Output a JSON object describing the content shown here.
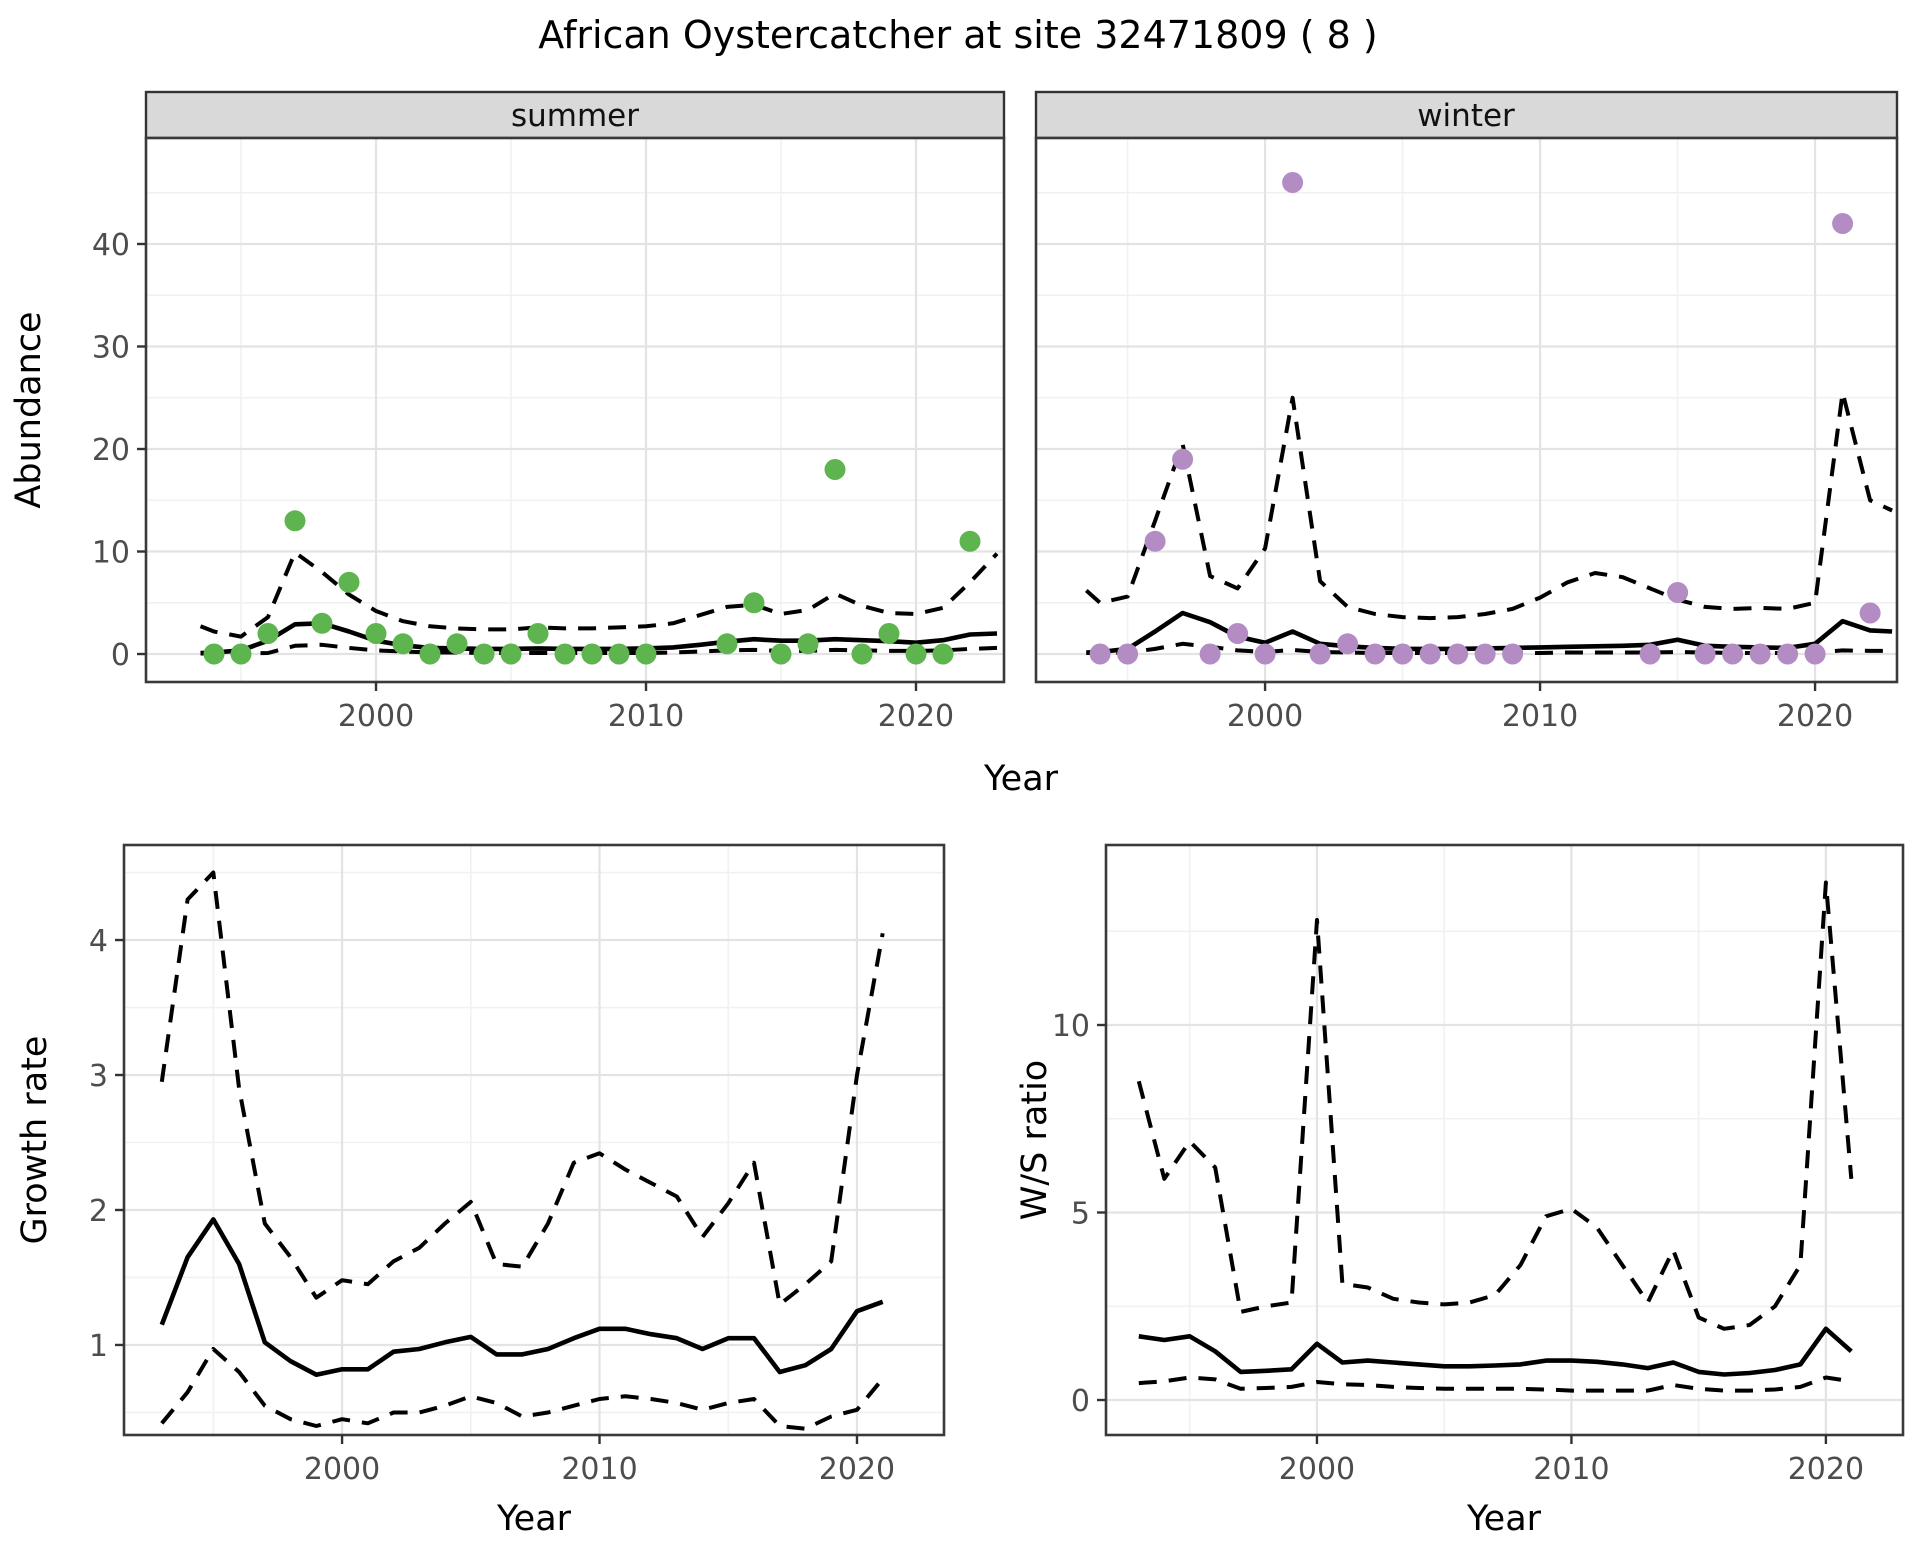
{
  "title": "African Oystercatcher at site 32471809 ( 8 )",
  "axes": {
    "abundance_label": "Abundance",
    "year_label": "Year",
    "growth_label": "Growth rate",
    "ws_label": "W/S ratio"
  },
  "colors": {
    "summer_point": "#5eb44e",
    "winter_point": "#b48cc4",
    "line": "#000000",
    "strip_bg": "#d9d9d9",
    "grid_major": "#e3e3e3",
    "grid_minor": "#f1f1f1",
    "panel_border": "#3a3a3a"
  },
  "chart_data": [
    {
      "id": "abundance-summer",
      "type": "scatter+line",
      "strip": "summer",
      "ylabel": "Abundance",
      "xlabel": "Year",
      "point_color": "#5eb44e",
      "xlim": [
        1991.48,
        2023.26
      ],
      "ylim": [
        -2.73,
        50.34
      ],
      "x_ticks": [
        2000,
        2010,
        2020
      ],
      "y_ticks": [
        0,
        10,
        20,
        30,
        40
      ],
      "x_minor": [
        1995,
        2005,
        2015
      ],
      "y_minor": [
        5,
        15,
        25,
        35,
        45
      ],
      "points": {
        "x": [
          1994,
          1995,
          1996,
          1997,
          1998,
          1999,
          2000,
          2001,
          2002,
          2003,
          2004,
          2005,
          2006,
          2007,
          2008,
          2009,
          2010,
          2013,
          2014,
          2015,
          2016,
          2017,
          2018,
          2019,
          2020,
          2021,
          2022
        ],
        "y": [
          0,
          0,
          2,
          13,
          3,
          7,
          2,
          1,
          0,
          1,
          0,
          0,
          2,
          0,
          0,
          0,
          0,
          1,
          5,
          0,
          1,
          18,
          0,
          2,
          0,
          0,
          11
        ]
      },
      "lines": {
        "x": [
          1993.5,
          1994,
          1995,
          1996,
          1997,
          1998,
          1999,
          2000,
          2001,
          2002,
          2003,
          2004,
          2005,
          2006,
          2007,
          2008,
          2009,
          2010,
          2011,
          2012,
          2013,
          2014,
          2015,
          2016,
          2017,
          2018,
          2019,
          2020,
          2021,
          2022,
          2023
        ],
        "fit": [
          0.1,
          0.15,
          0.35,
          1.3,
          2.9,
          3.0,
          2.2,
          1.3,
          0.85,
          0.6,
          0.55,
          0.5,
          0.5,
          0.55,
          0.5,
          0.5,
          0.5,
          0.55,
          0.65,
          0.9,
          1.2,
          1.45,
          1.3,
          1.3,
          1.45,
          1.35,
          1.25,
          1.1,
          1.35,
          1.9,
          2.0
        ],
        "upper": [
          2.7,
          2.2,
          1.7,
          3.6,
          9.9,
          8.0,
          5.8,
          4.2,
          3.2,
          2.7,
          2.5,
          2.4,
          2.4,
          2.6,
          2.5,
          2.5,
          2.6,
          2.7,
          3.0,
          3.8,
          4.6,
          4.8,
          3.9,
          4.3,
          5.9,
          4.7,
          4.0,
          3.9,
          4.5,
          7.0,
          9.8
        ],
        "lower": [
          0.05,
          0.05,
          0.05,
          0.1,
          0.8,
          0.9,
          0.6,
          0.35,
          0.25,
          0.15,
          0.15,
          0.1,
          0.1,
          0.1,
          0.1,
          0.1,
          0.1,
          0.1,
          0.15,
          0.25,
          0.35,
          0.4,
          0.3,
          0.3,
          0.4,
          0.35,
          0.3,
          0.3,
          0.35,
          0.5,
          0.6
        ]
      }
    },
    {
      "id": "abundance-winter",
      "type": "scatter+line",
      "strip": "winter",
      "ylabel": "Abundance",
      "xlabel": "Year",
      "point_color": "#b48cc4",
      "xlim": [
        1991.67,
        2022.98
      ],
      "ylim": [
        -2.73,
        50.34
      ],
      "x_ticks": [
        2000,
        2010,
        2020
      ],
      "y_ticks": [
        0,
        10,
        20,
        30,
        40
      ],
      "x_minor": [
        1995,
        2005,
        2015
      ],
      "y_minor": [
        5,
        15,
        25,
        35,
        45
      ],
      "points": {
        "x": [
          1994,
          1995,
          1996,
          1997,
          1998,
          1999,
          2000,
          2001,
          2002,
          2003,
          2004,
          2005,
          2006,
          2007,
          2008,
          2009,
          2014,
          2015,
          2016,
          2017,
          2018,
          2019,
          2020,
          2021,
          2022
        ],
        "y": [
          0,
          0,
          11,
          19,
          0,
          2,
          0,
          46,
          0,
          1,
          0,
          0,
          0,
          0,
          0,
          0,
          0,
          6,
          0,
          0,
          0,
          0,
          0,
          42,
          4
        ]
      },
      "lines": {
        "x": [
          1993.5,
          1994,
          1995,
          1996,
          1997,
          1998,
          1999,
          2000,
          2001,
          2002,
          2003,
          2004,
          2005,
          2006,
          2007,
          2008,
          2009,
          2010,
          2011,
          2012,
          2013,
          2014,
          2015,
          2016,
          2017,
          2018,
          2019,
          2020,
          2021,
          2022,
          2022.8
        ],
        "fit": [
          0.15,
          0.2,
          0.5,
          2.2,
          4.0,
          3.1,
          1.7,
          1.1,
          2.2,
          1.0,
          0.75,
          0.6,
          0.5,
          0.5,
          0.5,
          0.55,
          0.6,
          0.65,
          0.7,
          0.75,
          0.8,
          0.9,
          1.4,
          0.8,
          0.7,
          0.65,
          0.6,
          1.0,
          3.2,
          2.3,
          2.2
        ],
        "upper": [
          6.2,
          5.0,
          5.6,
          13.0,
          20.5,
          7.6,
          6.4,
          10.3,
          25.0,
          7.1,
          4.6,
          3.9,
          3.6,
          3.5,
          3.6,
          3.9,
          4.4,
          5.5,
          7.0,
          7.9,
          7.5,
          6.4,
          5.3,
          4.6,
          4.4,
          4.5,
          4.4,
          5.0,
          25.5,
          15.0,
          14.0
        ],
        "lower": [
          0.1,
          0.1,
          0.15,
          0.5,
          1.0,
          0.7,
          0.35,
          0.2,
          0.4,
          0.2,
          0.15,
          0.1,
          0.1,
          0.1,
          0.1,
          0.1,
          0.1,
          0.1,
          0.15,
          0.15,
          0.15,
          0.15,
          0.2,
          0.15,
          0.1,
          0.1,
          0.1,
          0.15,
          0.35,
          0.3,
          0.3
        ]
      }
    },
    {
      "id": "growth-rate",
      "type": "line",
      "strip": null,
      "ylabel": "Growth rate",
      "xlabel": "Year",
      "point_color": null,
      "xlim": [
        1991.53,
        2023.38
      ],
      "ylim": [
        0.333,
        4.704
      ],
      "x_ticks": [
        2000,
        2010,
        2020
      ],
      "y_ticks": [
        1,
        2,
        3,
        4
      ],
      "x_minor": [
        1995,
        2005,
        2015
      ],
      "y_minor": [
        0.5,
        1.5,
        2.5,
        3.5,
        4.5
      ],
      "points": null,
      "lines": {
        "x": [
          1993,
          1994,
          1995,
          1996,
          1997,
          1998,
          1999,
          2000,
          2001,
          2002,
          2003,
          2004,
          2005,
          2006,
          2007,
          2008,
          2009,
          2010,
          2011,
          2012,
          2013,
          2014,
          2015,
          2016,
          2017,
          2018,
          2019,
          2020,
          2021
        ],
        "fit": [
          1.15,
          1.65,
          1.93,
          1.6,
          1.02,
          0.88,
          0.78,
          0.82,
          0.82,
          0.95,
          0.97,
          1.02,
          1.06,
          0.93,
          0.93,
          0.97,
          1.05,
          1.12,
          1.12,
          1.08,
          1.05,
          0.97,
          1.05,
          1.05,
          0.8,
          0.85,
          0.97,
          1.25,
          1.32
        ],
        "upper": [
          2.95,
          4.3,
          4.5,
          2.9,
          1.9,
          1.65,
          1.35,
          1.48,
          1.45,
          1.62,
          1.72,
          1.9,
          2.06,
          1.6,
          1.58,
          1.9,
          2.35,
          2.42,
          2.3,
          2.2,
          2.1,
          1.8,
          2.05,
          2.35,
          1.3,
          1.45,
          1.62,
          3.0,
          4.05
        ],
        "lower": [
          0.42,
          0.65,
          0.97,
          0.8,
          0.55,
          0.45,
          0.4,
          0.45,
          0.42,
          0.5,
          0.5,
          0.55,
          0.62,
          0.57,
          0.47,
          0.5,
          0.55,
          0.6,
          0.62,
          0.6,
          0.57,
          0.52,
          0.57,
          0.6,
          0.4,
          0.38,
          0.47,
          0.52,
          0.75
        ]
      }
    },
    {
      "id": "ws-ratio",
      "type": "line",
      "strip": null,
      "ylabel": "W/S ratio",
      "xlabel": "Year",
      "point_color": null,
      "xlim": [
        1991.71,
        2023.03
      ],
      "ylim": [
        -0.933,
        14.8
      ],
      "x_ticks": [
        2000,
        2010,
        2020
      ],
      "y_ticks": [
        0,
        5,
        10
      ],
      "x_minor": [
        1995,
        2005,
        2015
      ],
      "y_minor": [
        2.5,
        7.5,
        12.5
      ],
      "points": null,
      "lines": {
        "x": [
          1993,
          1994,
          1995,
          1996,
          1997,
          1998,
          1999,
          2000,
          2001,
          2002,
          2003,
          2004,
          2005,
          2006,
          2007,
          2008,
          2009,
          2010,
          2011,
          2012,
          2013,
          2014,
          2015,
          2016,
          2017,
          2018,
          2019,
          2020,
          2021
        ],
        "fit": [
          1.7,
          1.6,
          1.7,
          1.3,
          0.75,
          0.78,
          0.82,
          1.5,
          1.0,
          1.05,
          1.0,
          0.95,
          0.9,
          0.9,
          0.92,
          0.95,
          1.05,
          1.05,
          1.02,
          0.95,
          0.85,
          1.0,
          0.75,
          0.68,
          0.72,
          0.8,
          0.95,
          1.9,
          1.3
        ],
        "upper": [
          8.5,
          5.9,
          6.9,
          6.2,
          2.35,
          2.5,
          2.6,
          12.8,
          3.1,
          3.0,
          2.7,
          2.6,
          2.55,
          2.6,
          2.8,
          3.6,
          4.9,
          5.1,
          4.6,
          3.6,
          2.6,
          4.0,
          2.2,
          1.9,
          2.0,
          2.5,
          3.6,
          13.8,
          5.9
        ],
        "lower": [
          0.45,
          0.5,
          0.6,
          0.55,
          0.3,
          0.32,
          0.35,
          0.48,
          0.42,
          0.4,
          0.35,
          0.32,
          0.3,
          0.3,
          0.3,
          0.3,
          0.28,
          0.25,
          0.25,
          0.25,
          0.25,
          0.4,
          0.3,
          0.25,
          0.25,
          0.28,
          0.35,
          0.6,
          0.5
        ]
      }
    }
  ]
}
